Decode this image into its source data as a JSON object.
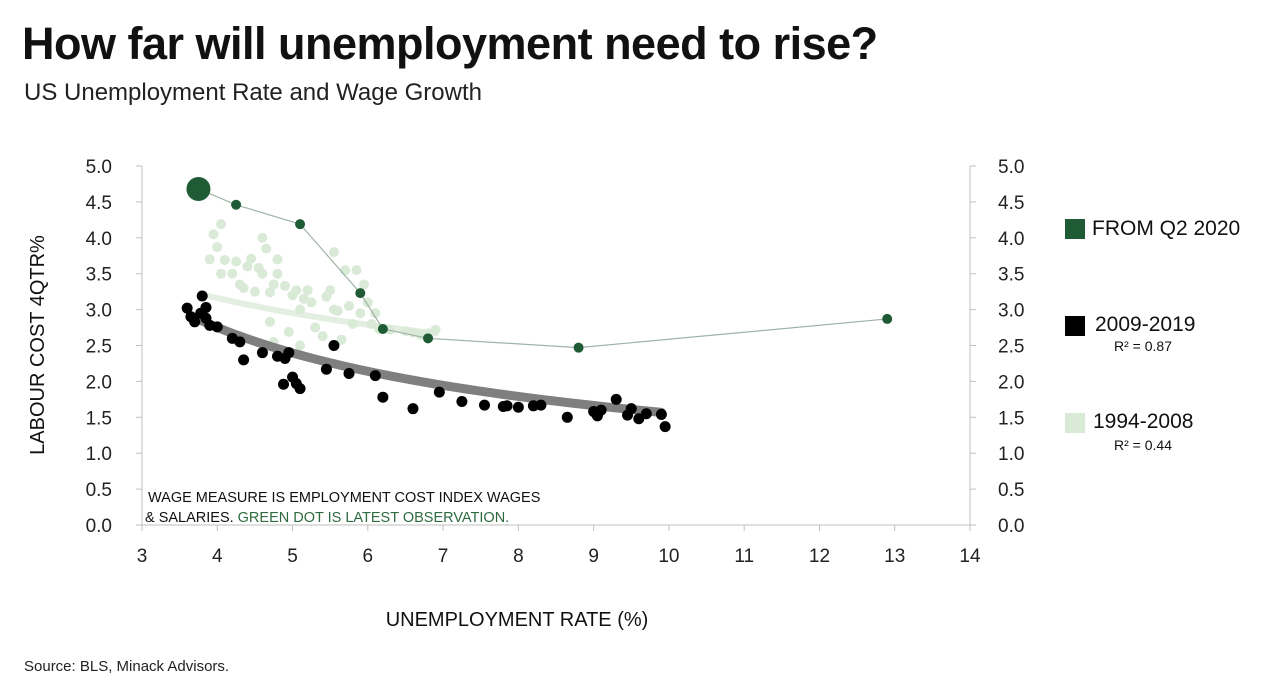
{
  "header": {
    "title": "How far will unemployment need to rise?",
    "subtitle": "US Unemployment Rate and Wage Growth"
  },
  "footer": {
    "source": "Source: BLS, Minack Advisors."
  },
  "colors": {
    "latest": "#1f5c35",
    "recent": "#000000",
    "older": "#d9ead7",
    "trend": "#7f7f7f",
    "axis": "#bfbfbf",
    "note_green": "#2e6b40"
  },
  "chart_data": {
    "type": "scatter",
    "title": "How far will unemployment need to rise?",
    "subtitle": "US Unemployment Rate and Wage Growth",
    "xlabel": "UNEMPLOYMENT RATE (%)",
    "ylabel": "LABOUR COST 4QTR%",
    "xlim": [
      3,
      14
    ],
    "ylim": [
      0,
      5
    ],
    "x_ticks": [
      "3",
      "4",
      "5",
      "6",
      "7",
      "8",
      "9",
      "10",
      "11",
      "12",
      "13",
      "14"
    ],
    "y_ticks_left": [
      "0.0",
      "0.5",
      "1.0",
      "1.5",
      "2.0",
      "2.5",
      "3.0",
      "3.5",
      "4.0",
      "4.5",
      "5.0"
    ],
    "y_ticks_right": [
      "0.0",
      "0.5",
      "1.0",
      "1.5",
      "2.0",
      "2.5",
      "3.0",
      "3.5",
      "4.0",
      "4.5",
      "5.0"
    ],
    "grid": false,
    "legend_position": "right",
    "note": {
      "black_text_1": "WAGE MEASURE IS EMPLOYMENT COST INDEX WAGES",
      "black_text_2": "& SALARIES.",
      "green_text": "GREEN DOT IS LATEST OBSERVATION."
    },
    "series": [
      {
        "name": "FROM Q2 2020",
        "r2": "",
        "connected": true,
        "points": [
          [
            12.9,
            2.87
          ],
          [
            8.8,
            2.47
          ],
          [
            6.8,
            2.6
          ],
          [
            6.2,
            2.73
          ],
          [
            5.9,
            3.23
          ],
          [
            5.1,
            4.19
          ],
          [
            4.25,
            4.46
          ],
          [
            3.75,
            4.68
          ]
        ]
      },
      {
        "name": "2009-2019",
        "r2": "R² = 0.87",
        "trendline": {
          "from": 3.7,
          "to": 9.9,
          "a": 6.5,
          "b": -0.62
        },
        "points": [
          [
            3.6,
            3.02
          ],
          [
            3.65,
            2.9
          ],
          [
            3.7,
            2.83
          ],
          [
            3.78,
            2.95
          ],
          [
            3.8,
            3.19
          ],
          [
            3.85,
            3.03
          ],
          [
            3.85,
            2.88
          ],
          [
            3.9,
            2.78
          ],
          [
            4.0,
            2.76
          ],
          [
            4.2,
            2.6
          ],
          [
            4.3,
            2.55
          ],
          [
            4.35,
            2.3
          ],
          [
            4.6,
            2.4
          ],
          [
            4.8,
            2.35
          ],
          [
            4.9,
            2.32
          ],
          [
            4.95,
            2.4
          ],
          [
            4.88,
            1.96
          ],
          [
            5.0,
            2.06
          ],
          [
            5.05,
            1.97
          ],
          [
            5.1,
            1.9
          ],
          [
            5.45,
            2.17
          ],
          [
            5.55,
            2.5
          ],
          [
            5.75,
            2.11
          ],
          [
            6.1,
            2.08
          ],
          [
            6.2,
            1.78
          ],
          [
            6.6,
            1.62
          ],
          [
            6.95,
            1.85
          ],
          [
            7.25,
            1.72
          ],
          [
            7.55,
            1.67
          ],
          [
            7.8,
            1.65
          ],
          [
            7.85,
            1.66
          ],
          [
            8.0,
            1.64
          ],
          [
            8.2,
            1.66
          ],
          [
            8.3,
            1.67
          ],
          [
            8.65,
            1.5
          ],
          [
            9.0,
            1.58
          ],
          [
            9.05,
            1.52
          ],
          [
            9.1,
            1.6
          ],
          [
            9.3,
            1.75
          ],
          [
            9.45,
            1.53
          ],
          [
            9.5,
            1.62
          ],
          [
            9.6,
            1.48
          ],
          [
            9.7,
            1.55
          ],
          [
            9.9,
            1.54
          ],
          [
            9.95,
            1.37
          ]
        ]
      },
      {
        "name": "1994-2008",
        "r2": "R² = 0.44",
        "trendline": {
          "from": 3.9,
          "to": 6.9,
          "a": 4.86,
          "b": -0.31
        },
        "points": [
          [
            3.9,
            3.7
          ],
          [
            3.95,
            4.05
          ],
          [
            4.0,
            3.87
          ],
          [
            4.05,
            4.19
          ],
          [
            4.05,
            3.5
          ],
          [
            4.1,
            3.69
          ],
          [
            4.2,
            3.5
          ],
          [
            4.25,
            3.67
          ],
          [
            4.3,
            3.35
          ],
          [
            4.35,
            3.3
          ],
          [
            4.4,
            3.6
          ],
          [
            4.45,
            3.71
          ],
          [
            4.5,
            3.25
          ],
          [
            4.55,
            3.58
          ],
          [
            4.6,
            3.5
          ],
          [
            4.6,
            4.0
          ],
          [
            4.65,
            3.85
          ],
          [
            4.7,
            3.24
          ],
          [
            4.75,
            3.35
          ],
          [
            4.8,
            3.7
          ],
          [
            4.8,
            3.5
          ],
          [
            4.9,
            3.33
          ],
          [
            5.0,
            3.2
          ],
          [
            5.05,
            3.27
          ],
          [
            5.1,
            3.0
          ],
          [
            5.15,
            3.15
          ],
          [
            5.2,
            3.27
          ],
          [
            5.25,
            3.1
          ],
          [
            5.3,
            2.75
          ],
          [
            5.4,
            2.63
          ],
          [
            5.45,
            3.18
          ],
          [
            5.5,
            3.27
          ],
          [
            5.55,
            3.8
          ],
          [
            5.55,
            3.0
          ],
          [
            5.6,
            2.98
          ],
          [
            5.7,
            3.55
          ],
          [
            5.75,
            3.05
          ],
          [
            5.8,
            2.8
          ],
          [
            5.85,
            3.55
          ],
          [
            5.9,
            2.95
          ],
          [
            5.95,
            3.35
          ],
          [
            6.0,
            3.1
          ],
          [
            6.05,
            2.8
          ],
          [
            6.1,
            2.95
          ],
          [
            6.15,
            2.73
          ],
          [
            6.2,
            2.73
          ],
          [
            6.3,
            2.72
          ],
          [
            6.5,
            2.7
          ],
          [
            6.6,
            2.68
          ],
          [
            6.7,
            2.65
          ],
          [
            6.8,
            2.67
          ],
          [
            6.9,
            2.72
          ],
          [
            4.7,
            2.83
          ],
          [
            4.95,
            2.69
          ],
          [
            5.1,
            2.5
          ],
          [
            4.75,
            2.55
          ],
          [
            5.65,
            2.58
          ]
        ]
      }
    ]
  }
}
